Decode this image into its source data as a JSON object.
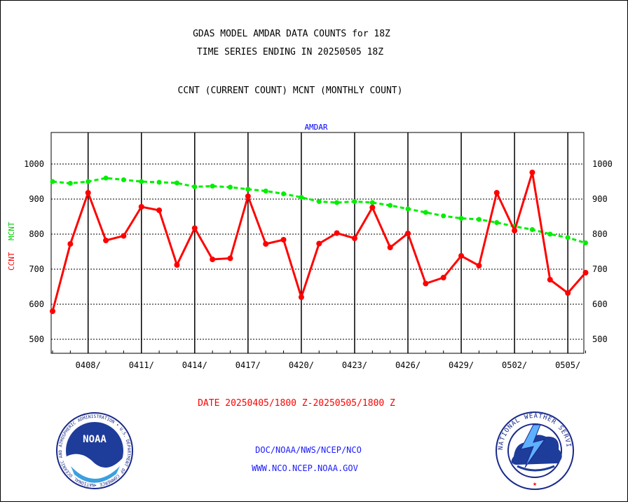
{
  "header": {
    "title_line1": "GDAS MODEL AMDAR DATA COUNTS for 18Z",
    "title_line2": "TIME SERIES ENDING IN 20250505 18Z",
    "legend_line": "CCNT (CURRENT COUNT) MCNT (MONTHLY COUNT)"
  },
  "footer": {
    "date_range": "DATE 20250405/1800 Z-20250505/1800 Z",
    "org_path": "DOC/NOAA/NWS/NCEP/NCO",
    "website": "WWW.NCO.NCEP.NOAA.GOV"
  },
  "logos": {
    "noaa_label": "NOAA",
    "noaa_ring_text": "NATIONAL OCEANIC AND ATMOSPHERIC ADMINISTRATION • U.S. DEPARTMENT OF COMMERCE •",
    "nws_ring_text": "NATIONAL WEATHER SERVICE"
  },
  "chart_data": {
    "type": "line",
    "title": "AMDAR",
    "ylabel_left": "CCNT",
    "ylabel_right": "MCNT",
    "ylim": [
      460,
      1090
    ],
    "yticks": [
      500,
      600,
      700,
      800,
      900,
      1000
    ],
    "xticks": [
      "0408/",
      "0411/",
      "0414/",
      "0417/",
      "0420/",
      "0423/",
      "0426/",
      "0429/",
      "0502/",
      "0505/"
    ],
    "x_start_day": 0,
    "x_end_day": 30,
    "grid": true,
    "colors": {
      "ccnt": "#ff0000",
      "mcnt": "#00ee00",
      "axis": "#000000",
      "title": "#0000ff"
    },
    "series": [
      {
        "name": "CCNT",
        "values": [
          580,
          772,
          918,
          782,
          795,
          878,
          868,
          712,
          817,
          728,
          731,
          908,
          772,
          784,
          620,
          773,
          803,
          788,
          876,
          762,
          802,
          659,
          676,
          738,
          710,
          918,
          810,
          976,
          670,
          632,
          690
        ]
      },
      {
        "name": "MCNT",
        "values": [
          950,
          945,
          950,
          960,
          955,
          950,
          948,
          946,
          935,
          937,
          934,
          928,
          923,
          915,
          905,
          893,
          890,
          893,
          890,
          882,
          872,
          862,
          852,
          845,
          842,
          833,
          822,
          813,
          800,
          790,
          775
        ]
      }
    ]
  }
}
